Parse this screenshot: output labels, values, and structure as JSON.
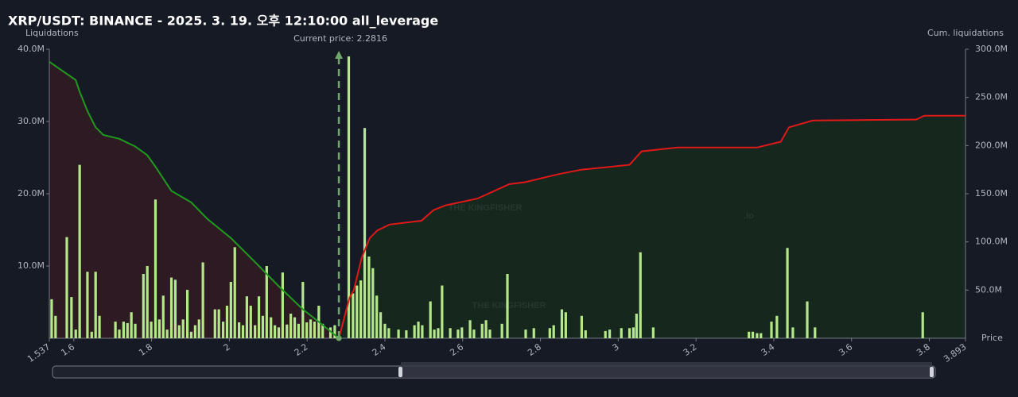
{
  "chart_data": {
    "type": "bar",
    "title": "XRP/USDT: BINANCE - 2025. 3. 19. 오후 12:10:00 all_leverage",
    "y_label": "Liquidations",
    "y2_label": "Cum. liquidations",
    "x_label": "Price",
    "current_price": 2.2816,
    "current_price_label": "Current price: 2.2816",
    "watermark": "THE KINGFISHER",
    "watermark_suffix": ".io",
    "xlim": [
      1.537,
      3.893
    ],
    "xticks": [
      1.537,
      1.6,
      1.8,
      2,
      2.2,
      2.4,
      2.6,
      2.8,
      3,
      3.2,
      3.4,
      3.6,
      3.8,
      3.893
    ],
    "ylim": [
      0,
      40
    ],
    "yticks": [
      {
        "value": 10,
        "label": "10.0M"
      },
      {
        "value": 20,
        "label": "20.0M"
      },
      {
        "value": 30,
        "label": "30.0M"
      },
      {
        "value": 40,
        "label": "40.0M"
      }
    ],
    "y2lim": [
      0,
      300
    ],
    "y2ticks": [
      {
        "value": 50,
        "label": "50.0M"
      },
      {
        "value": 100,
        "label": "100.0M"
      },
      {
        "value": 150,
        "label": "150.0M"
      },
      {
        "value": 200,
        "label": "200.0M"
      },
      {
        "value": 250,
        "label": "250.0M"
      },
      {
        "value": 300,
        "label": "300.0M"
      }
    ],
    "series": [
      {
        "type": "bar",
        "color": "#b5e88a",
        "x": [
          1.543,
          1.553,
          1.582,
          1.594,
          1.605,
          1.615,
          1.635,
          1.646,
          1.656,
          1.666,
          1.707,
          1.717,
          1.728,
          1.738,
          1.748,
          1.758,
          1.779,
          1.789,
          1.799,
          1.81,
          1.82,
          1.83,
          1.84,
          1.851,
          1.861,
          1.871,
          1.881,
          1.892,
          1.902,
          1.912,
          1.922,
          1.932,
          1.963,
          1.973,
          1.984,
          1.994,
          2.004,
          2.014,
          2.025,
          2.035,
          2.045,
          2.055,
          2.066,
          2.076,
          2.086,
          2.096,
          2.107,
          2.117,
          2.127,
          2.137,
          2.148,
          2.158,
          2.168,
          2.178,
          2.189,
          2.199,
          2.209,
          2.219,
          2.23,
          2.24,
          2.26,
          2.271,
          2.307,
          2.318,
          2.328,
          2.338,
          2.348,
          2.359,
          2.369,
          2.379,
          2.389,
          2.4,
          2.41,
          2.435,
          2.455,
          2.476,
          2.486,
          2.496,
          2.517,
          2.527,
          2.537,
          2.547,
          2.568,
          2.588,
          2.598,
          2.619,
          2.629,
          2.65,
          2.66,
          2.67,
          2.701,
          2.715,
          2.762,
          2.783,
          2.824,
          2.834,
          2.855,
          2.865,
          2.906,
          2.916,
          2.967,
          2.978,
          3.008,
          3.029,
          3.039,
          3.047,
          3.057,
          3.09,
          3.336,
          3.346,
          3.357,
          3.367,
          3.394,
          3.408,
          3.435,
          3.449,
          3.486,
          3.506,
          3.783
        ],
        "values": [
          5.4,
          3.1,
          14,
          5.7,
          1.2,
          24,
          9.2,
          0.9,
          9.2,
          3.1,
          2.3,
          1.2,
          2.3,
          2.1,
          3.6,
          2,
          8.9,
          10,
          2.3,
          19.2,
          2.6,
          5.9,
          1.2,
          8.4,
          8.1,
          1.8,
          2.6,
          6.7,
          0.9,
          1.8,
          2.6,
          10.5,
          4,
          4,
          2.3,
          4.5,
          7.8,
          12.6,
          2.2,
          1.8,
          5.8,
          4.5,
          1.8,
          5.8,
          3.1,
          10,
          2.9,
          1.8,
          1.5,
          9.1,
          1.9,
          3.4,
          2.9,
          2,
          7.8,
          2.2,
          2.6,
          2.3,
          4.5,
          2,
          1.5,
          1.8,
          39,
          6.2,
          7.3,
          8,
          29.1,
          11.3,
          9.7,
          5.9,
          3.6,
          2,
          1.4,
          1.2,
          1.1,
          1.8,
          2.3,
          1.8,
          5.1,
          1.2,
          1.4,
          7.3,
          1.4,
          1.2,
          1.5,
          2.5,
          1.2,
          2,
          2.5,
          1.2,
          2,
          8.9,
          1.2,
          1.4,
          1.4,
          1.8,
          4,
          3.6,
          3.1,
          1.1,
          1,
          1.2,
          1.4,
          1.4,
          1.5,
          3.4,
          11.9,
          1.5,
          0.9,
          0.9,
          0.7,
          0.7,
          2.3,
          3.1,
          12.5,
          1.5,
          5.1,
          1.5,
          3.6
        ]
      },
      {
        "type": "line",
        "axis": "y2",
        "color": "#1f9a1f",
        "fill": "#2e1a22",
        "x": [
          1.537,
          1.605,
          1.615,
          1.635,
          1.656,
          1.676,
          1.717,
          1.758,
          1.789,
          1.81,
          1.851,
          1.902,
          1.943,
          2.004,
          2.066,
          2.127,
          2.189,
          2.23,
          2.2816
        ],
        "values": [
          287,
          268,
          256,
          236,
          219,
          211,
          207,
          199,
          190,
          178,
          153,
          141,
          124,
          104,
          79,
          54,
          30,
          17,
          0
        ]
      },
      {
        "type": "line",
        "axis": "y2",
        "color": "#e01818",
        "fill": "#16281e",
        "x": [
          2.2816,
          2.309,
          2.32,
          2.34,
          2.361,
          2.381,
          2.412,
          2.494,
          2.525,
          2.556,
          2.638,
          2.72,
          2.761,
          2.843,
          2.905,
          3.029,
          3.06,
          3.152,
          3.357,
          3.418,
          3.439,
          3.5,
          3.766,
          3.787,
          3.893
        ],
        "values": [
          0,
          42,
          50,
          83,
          104,
          112,
          118,
          122,
          133,
          138,
          145,
          160,
          162,
          170,
          175,
          180,
          194,
          198,
          198,
          204,
          219,
          226,
          227,
          231,
          231
        ]
      }
    ]
  }
}
